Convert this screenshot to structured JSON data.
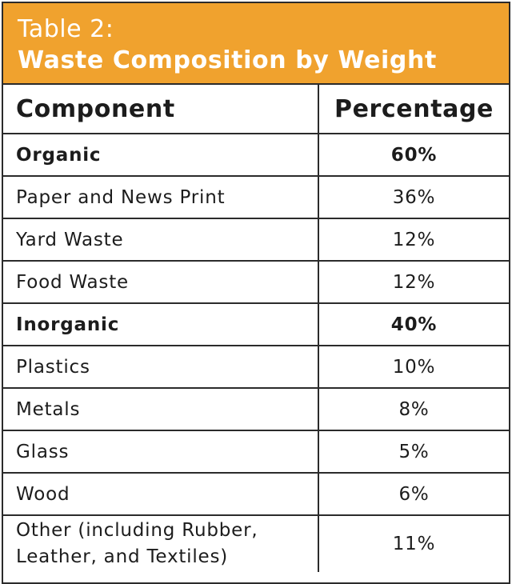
{
  "table": {
    "label": "Table 2:",
    "title": "Waste Composition by Weight",
    "headers": [
      "Component",
      "Percentage"
    ],
    "rows": [
      {
        "component": "Organic",
        "percentage": "60%",
        "bold": true
      },
      {
        "component": "Paper and News Print",
        "percentage": "36%",
        "bold": false
      },
      {
        "component": "Yard Waste",
        "percentage": "12%",
        "bold": false
      },
      {
        "component": "Food Waste",
        "percentage": "12%",
        "bold": false
      },
      {
        "component": "Inorganic",
        "percentage": "40%",
        "bold": true
      },
      {
        "component": "Plastics",
        "percentage": "10%",
        "bold": false
      },
      {
        "component": "Metals",
        "percentage": "8%",
        "bold": false
      },
      {
        "component": "Glass",
        "percentage": "5%",
        "bold": false
      },
      {
        "component": "Wood",
        "percentage": "6%",
        "bold": false
      },
      {
        "component": "Other (including Rubber,\nLeather, and Textiles)",
        "percentage": "11%",
        "bold": false
      }
    ]
  },
  "colors": {
    "header_bg": "#f0a22e",
    "border": "#2b2b2b",
    "text": "#1c1c1c"
  }
}
